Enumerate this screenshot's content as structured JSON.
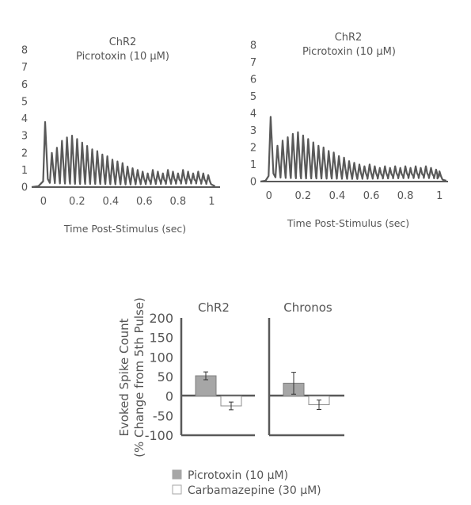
{
  "colors": {
    "trace": "#595959",
    "axis": "#595959",
    "bar_picrotoxin": "#a6a6a6",
    "bar_carbamazepine": "#ffffff",
    "text": "#555555"
  },
  "chart_data": [
    {
      "type": "line",
      "title_lines": [
        "ChR2",
        "Picrotoxin (10 µM)"
      ],
      "xlabel": "Time Post-Stimulus (sec)",
      "ylabel": "",
      "xlim": [
        -0.07,
        1.05
      ],
      "ylim": [
        0,
        8
      ],
      "xticks": [
        0,
        0.2,
        0.4,
        0.6,
        0.8,
        1
      ],
      "xtick_labels": [
        "0",
        "0.2",
        "0.4",
        "0.6",
        "0.8",
        "1"
      ],
      "yticks": [
        0,
        1,
        2,
        3,
        4,
        5,
        6,
        7,
        8
      ],
      "grid": false,
      "series": [
        {
          "peaks": [
            [
              0.01,
              3.8
            ],
            [
              0.05,
              2.0
            ],
            [
              0.08,
              2.3
            ],
            [
              0.11,
              2.7
            ],
            [
              0.14,
              2.9
            ],
            [
              0.17,
              3.0
            ],
            [
              0.2,
              2.8
            ],
            [
              0.23,
              2.6
            ],
            [
              0.26,
              2.4
            ],
            [
              0.29,
              2.2
            ],
            [
              0.32,
              2.1
            ],
            [
              0.35,
              1.9
            ],
            [
              0.38,
              1.8
            ],
            [
              0.41,
              1.6
            ],
            [
              0.44,
              1.5
            ],
            [
              0.47,
              1.4
            ],
            [
              0.5,
              1.2
            ],
            [
              0.53,
              1.1
            ],
            [
              0.56,
              1.0
            ],
            [
              0.59,
              0.9
            ],
            [
              0.62,
              0.8
            ],
            [
              0.65,
              1.0
            ],
            [
              0.68,
              0.9
            ],
            [
              0.71,
              0.8
            ],
            [
              0.74,
              1.0
            ],
            [
              0.77,
              0.9
            ],
            [
              0.8,
              0.8
            ],
            [
              0.83,
              1.0
            ],
            [
              0.86,
              0.9
            ],
            [
              0.89,
              0.8
            ],
            [
              0.92,
              0.9
            ],
            [
              0.95,
              0.8
            ],
            [
              0.98,
              0.7
            ]
          ],
          "baseline": [
            [
              -0.07,
              0.0
            ],
            [
              -0.03,
              0.05
            ],
            [
              0.0,
              0.6
            ],
            [
              0.04,
              0.4
            ],
            [
              0.1,
              0.35
            ],
            [
              0.2,
              0.3
            ],
            [
              0.3,
              0.3
            ],
            [
              0.5,
              0.25
            ],
            [
              0.7,
              0.3
            ],
            [
              0.9,
              0.35
            ],
            [
              0.98,
              0.3
            ],
            [
              1.0,
              0.15
            ],
            [
              1.02,
              0.05
            ]
          ]
        }
      ]
    },
    {
      "type": "line",
      "title_lines": [
        "ChR2",
        "Picrotoxin (10 µM)"
      ],
      "xlabel": "Time Post-Stimulus (sec)",
      "ylabel": "",
      "xlim": [
        -0.05,
        1.05
      ],
      "ylim": [
        0,
        8
      ],
      "xticks": [
        0,
        0.2,
        0.4,
        0.6,
        0.8,
        1
      ],
      "xtick_labels": [
        "0",
        "0.2",
        "0.4",
        "0.6",
        "0.8",
        "1"
      ],
      "yticks": [
        0,
        1,
        2,
        3,
        4,
        5,
        6,
        7,
        8
      ],
      "grid": false,
      "series": [
        {
          "peaks": [
            [
              0.01,
              3.8
            ],
            [
              0.05,
              2.1
            ],
            [
              0.08,
              2.4
            ],
            [
              0.11,
              2.6
            ],
            [
              0.14,
              2.8
            ],
            [
              0.17,
              2.9
            ],
            [
              0.2,
              2.7
            ],
            [
              0.23,
              2.5
            ],
            [
              0.26,
              2.3
            ],
            [
              0.29,
              2.1
            ],
            [
              0.32,
              2.0
            ],
            [
              0.35,
              1.8
            ],
            [
              0.38,
              1.7
            ],
            [
              0.41,
              1.5
            ],
            [
              0.44,
              1.4
            ],
            [
              0.47,
              1.2
            ],
            [
              0.5,
              1.1
            ],
            [
              0.53,
              1.0
            ],
            [
              0.56,
              0.9
            ],
            [
              0.59,
              1.0
            ],
            [
              0.62,
              0.9
            ],
            [
              0.65,
              0.8
            ],
            [
              0.68,
              0.9
            ],
            [
              0.71,
              0.8
            ],
            [
              0.74,
              0.9
            ],
            [
              0.77,
              0.8
            ],
            [
              0.8,
              0.9
            ],
            [
              0.83,
              0.8
            ],
            [
              0.86,
              0.9
            ],
            [
              0.89,
              0.8
            ],
            [
              0.92,
              0.9
            ],
            [
              0.95,
              0.8
            ],
            [
              0.98,
              0.7
            ],
            [
              1.0,
              0.6
            ]
          ],
          "baseline": [
            [
              -0.05,
              0.0
            ],
            [
              -0.02,
              0.05
            ],
            [
              0.0,
              0.6
            ],
            [
              0.04,
              0.4
            ],
            [
              0.1,
              0.35
            ],
            [
              0.2,
              0.3
            ],
            [
              0.3,
              0.3
            ],
            [
              0.5,
              0.25
            ],
            [
              0.7,
              0.3
            ],
            [
              0.9,
              0.35
            ],
            [
              1.0,
              0.3
            ],
            [
              1.02,
              0.1
            ],
            [
              1.04,
              0.05
            ]
          ]
        }
      ]
    },
    {
      "type": "bar",
      "ylabel_lines": [
        "Evoked Spike Count",
        "(% Change from 5th Pulse)"
      ],
      "ylim": [
        -100,
        200
      ],
      "yticks": [
        200,
        150,
        100,
        50,
        0,
        -50,
        -100
      ],
      "ytick_labels": [
        "200",
        "150",
        "100",
        "50",
        "0",
        "-50",
        "-100"
      ],
      "grid": false,
      "panels": [
        {
          "title": "ChR2",
          "values": [
            52,
            -25
          ],
          "errors": [
            10,
            10
          ]
        },
        {
          "title": "Chronos",
          "values": [
            33,
            -22
          ],
          "errors": [
            28,
            12
          ]
        }
      ],
      "series": [
        {
          "name": "Picrotoxin (10 µM)"
        },
        {
          "name": "Carbamazepine (30 µM)"
        }
      ],
      "legend_position": "bottom"
    }
  ]
}
